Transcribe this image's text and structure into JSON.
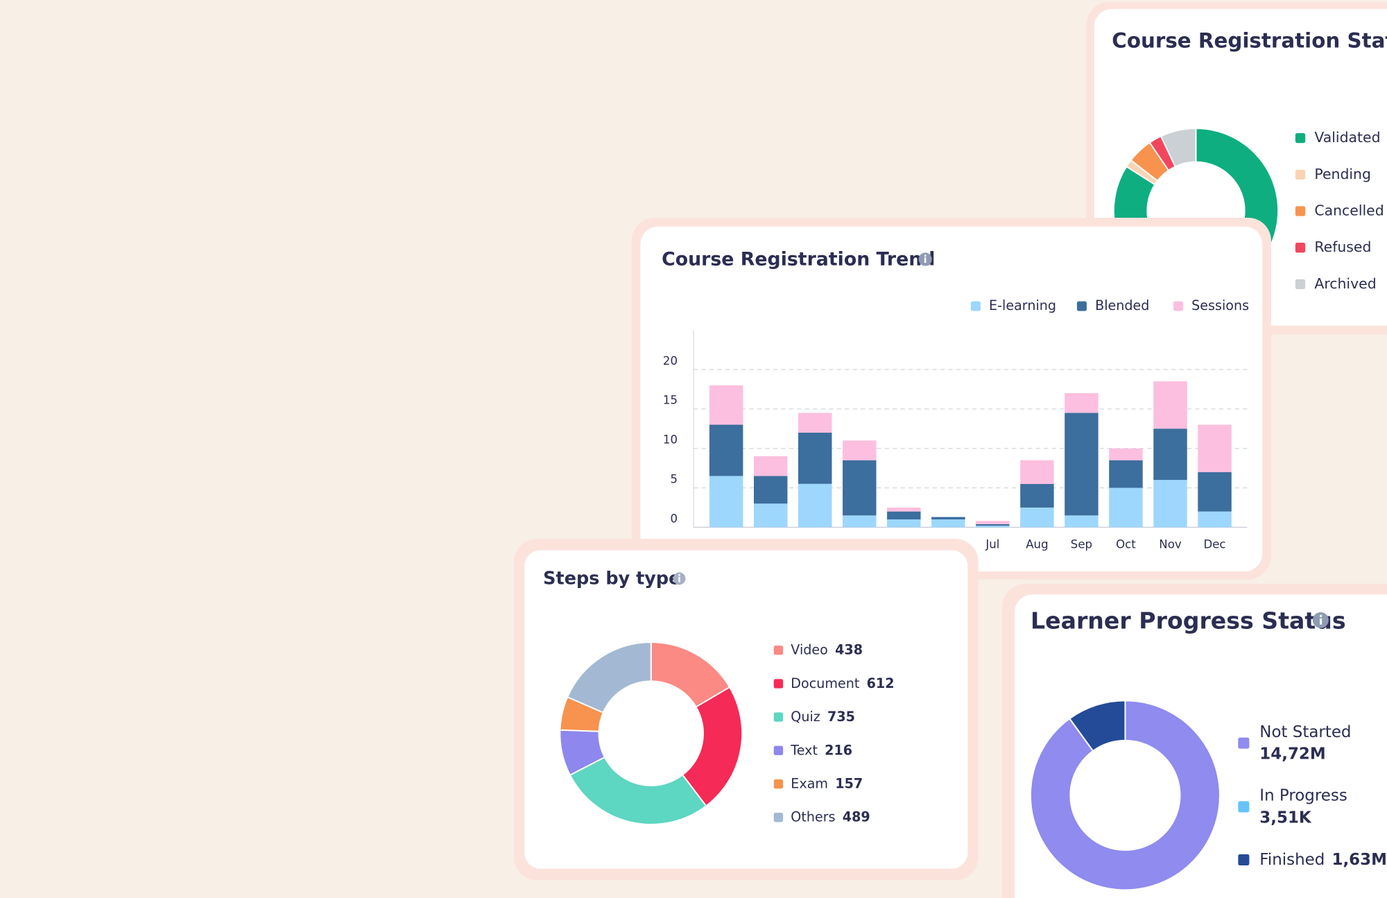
{
  "chart_data": [
    {
      "type": "donut",
      "title": "Course Registration Status",
      "categories": [
        "Validated",
        "Pending",
        "Cancelled",
        "Refused",
        "Archived"
      ],
      "values": [
        84,
        1.5,
        5,
        2.5,
        7
      ],
      "colors": [
        "#0eae80",
        "#f9d4b4",
        "#f8934f",
        "#f3465d",
        "#cbd0d4"
      ]
    },
    {
      "type": "bar",
      "stacked": true,
      "title": "Course Registration Trend",
      "categories": [
        null,
        null,
        null,
        null,
        null,
        null,
        "Jul",
        "Aug",
        "Sep",
        "Oct",
        "Nov",
        "Dec"
      ],
      "series": [
        {
          "name": "E-learning",
          "color": "#9dd7fd",
          "values": [
            6.5,
            3,
            5.5,
            1.5,
            1,
            1,
            0.2,
            2.5,
            1.5,
            5,
            6,
            2
          ]
        },
        {
          "name": "Blended",
          "color": "#3c6e9e",
          "values": [
            6.5,
            3.5,
            6.5,
            7,
            1,
            0.3,
            0.2,
            3,
            13,
            3.5,
            6.5,
            5
          ]
        },
        {
          "name": "Sessions",
          "color": "#fcbfdf",
          "values": [
            5,
            2.5,
            2.5,
            2.5,
            0.5,
            0,
            0.4,
            3,
            2.5,
            1.5,
            6,
            6
          ]
        }
      ],
      "ylim": [
        0,
        25
      ],
      "yticks": [
        0,
        5,
        10,
        15,
        20
      ],
      "grid": true
    },
    {
      "type": "donut",
      "title": "Steps by type",
      "categories": [
        "Video",
        "Document",
        "Quiz",
        "Text",
        "Exam",
        "Others"
      ],
      "values": [
        438,
        612,
        735,
        216,
        157,
        489
      ],
      "colors": [
        "#fb8a84",
        "#f52a56",
        "#5dd6c2",
        "#8e87ed",
        "#f8934f",
        "#a3b9d3"
      ]
    },
    {
      "type": "donut",
      "title": "Learner Progress Status",
      "categories": [
        "Not Started",
        "In Progress",
        "Finished"
      ],
      "values": [
        14720000,
        3510,
        1630000
      ],
      "value_labels": [
        "14,72M",
        "3,51K",
        "1,63M"
      ],
      "colors": [
        "#8f8bef",
        "#65c3fb",
        "#234b97"
      ]
    }
  ]
}
